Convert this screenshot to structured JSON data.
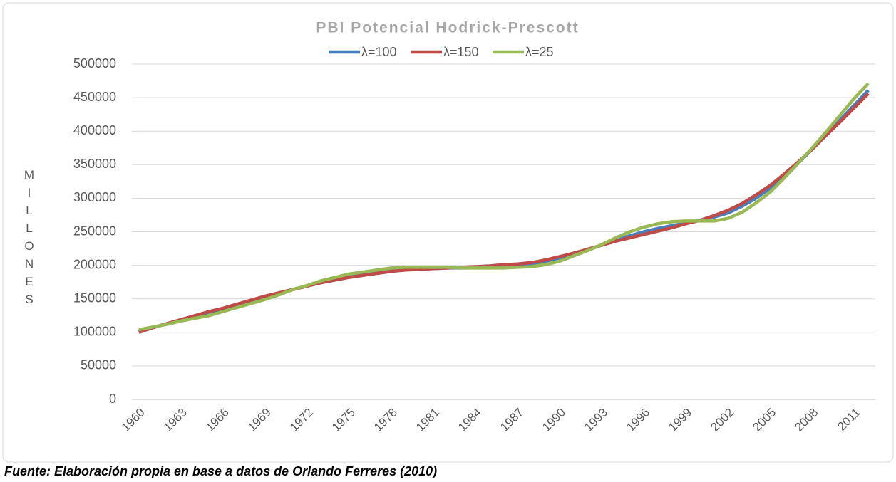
{
  "chart_data": {
    "type": "line",
    "title": "PBI Potencial Hodrick-Prescott",
    "y_label": "MILLONES",
    "source": "Fuente: Elaboración propia en base a datos de Orlando Ferreres (2010)",
    "categories": [
      "1960",
      null,
      null,
      "1963",
      null,
      null,
      "1966",
      null,
      null,
      "1969",
      null,
      null,
      "1972",
      null,
      null,
      "1975",
      null,
      null,
      "1978",
      null,
      null,
      "1981",
      null,
      null,
      "1984",
      null,
      null,
      "1987",
      null,
      null,
      "1990",
      null,
      null,
      "1993",
      null,
      null,
      "1996",
      null,
      null,
      "1999",
      null,
      null,
      "2002",
      null,
      null,
      "2005",
      null,
      null,
      "2008",
      null,
      null,
      "2011",
      null
    ],
    "ylim": [
      0,
      500000
    ],
    "yticks": [
      0,
      50000,
      100000,
      150000,
      200000,
      250000,
      300000,
      350000,
      400000,
      450000,
      500000
    ],
    "grid": true,
    "legend": "top",
    "series": [
      {
        "name": "λ=100",
        "color": "#4a7ebb",
        "values": [
          101000,
          107000,
          113000,
          118000,
          124000,
          130000,
          135000,
          141000,
          147000,
          153000,
          158000,
          164000,
          169000,
          175000,
          179000,
          183000,
          187000,
          190000,
          192000,
          194000,
          195000,
          195000,
          196000,
          196000,
          197000,
          198000,
          199000,
          200000,
          202000,
          206000,
          211000,
          217000,
          223000,
          230000,
          238000,
          244000,
          250000,
          255000,
          259000,
          263000,
          267000,
          272000,
          278000,
          288000,
          300000,
          315000,
          333000,
          352000,
          373000,
          395000,
          417000,
          439000,
          461000
        ]
      },
      {
        "name": "λ=150",
        "color": "#be4b48",
        "values": [
          100000,
          107000,
          113000,
          119000,
          125000,
          131000,
          136000,
          142000,
          148000,
          154000,
          159000,
          164000,
          169000,
          174000,
          178000,
          182000,
          185000,
          188000,
          191000,
          193000,
          194000,
          195000,
          196000,
          197000,
          198000,
          199000,
          201000,
          202000,
          204000,
          208000,
          213000,
          218000,
          224000,
          230000,
          236000,
          241000,
          246000,
          251000,
          256000,
          262000,
          267000,
          274000,
          282000,
          292000,
          305000,
          319000,
          336000,
          354000,
          373000,
          394000,
          414000,
          435000,
          456000
        ]
      },
      {
        "name": "λ=25",
        "color": "#98b954",
        "values": [
          104000,
          108000,
          112000,
          117000,
          121000,
          125000,
          131000,
          137000,
          143000,
          149000,
          156000,
          164000,
          170000,
          177000,
          182000,
          187000,
          190000,
          193000,
          196000,
          197000,
          197000,
          197000,
          197000,
          196000,
          196000,
          196000,
          196000,
          197000,
          198000,
          201000,
          206000,
          214000,
          222000,
          231000,
          241000,
          250000,
          257000,
          262000,
          265000,
          266000,
          266000,
          266000,
          270000,
          279000,
          293000,
          309000,
          330000,
          352000,
          375000,
          399000,
          424000,
          449000,
          471000
        ]
      }
    ]
  }
}
